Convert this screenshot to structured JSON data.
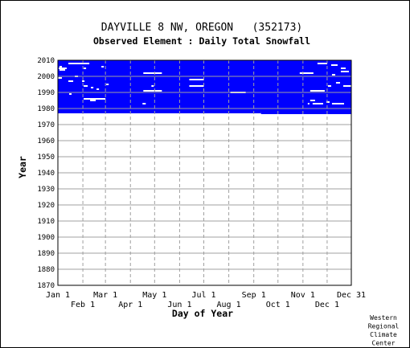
{
  "chart_data": {
    "type": "heatmap",
    "title": "DAYVILLE 8 NW, OREGON   (352173)",
    "subtitle": "Observed Element : Daily Total Snowfall",
    "xlabel": "Day of Year",
    "ylabel": "Year",
    "ylim": [
      1870,
      2010
    ],
    "xlim": [
      1,
      365
    ],
    "grid": true,
    "x_ticks_row1": [
      {
        "label": "Jan 1",
        "day": 1
      },
      {
        "label": "Mar 1",
        "day": 60
      },
      {
        "label": "May 1",
        "day": 121
      },
      {
        "label": "Jul 1",
        "day": 182
      },
      {
        "label": "Sep 1",
        "day": 244
      },
      {
        "label": "Nov 1",
        "day": 305
      },
      {
        "label": "Dec 31",
        "day": 365
      }
    ],
    "x_ticks_row2": [
      {
        "label": "Feb 1",
        "day": 32
      },
      {
        "label": "Apr 1",
        "day": 91
      },
      {
        "label": "Jun 1",
        "day": 152
      },
      {
        "label": "Aug 1",
        "day": 213
      },
      {
        "label": "Oct 1",
        "day": 274
      },
      {
        "label": "Dec 1",
        "day": 335
      }
    ],
    "y_ticks": [
      2010,
      2000,
      1990,
      1980,
      1970,
      1960,
      1950,
      1940,
      1930,
      1920,
      1910,
      1900,
      1890,
      1880,
      1870
    ],
    "data_color": "#0000ff",
    "record_start_year": 1978,
    "record_start_day": 1,
    "record_start_day_late": 253,
    "record_end_year": 2010,
    "gaps": [
      {
        "year": 2008,
        "day_start": 14,
        "day_end": 40
      },
      {
        "year": 2008,
        "day_start": 323,
        "day_end": 335
      },
      {
        "year": 2007,
        "day_start": 340,
        "day_end": 348
      },
      {
        "year": 2006,
        "day_start": 3,
        "day_end": 6
      },
      {
        "year": 2006,
        "day_start": 55,
        "day_end": 58
      },
      {
        "year": 2005,
        "day_start": 2,
        "day_end": 12
      },
      {
        "year": 2005,
        "day_start": 33,
        "day_end": 36
      },
      {
        "year": 2005,
        "day_start": 352,
        "day_end": 358
      },
      {
        "year": 2004,
        "day_start": 3,
        "day_end": 10
      },
      {
        "year": 2003,
        "day_start": 352,
        "day_end": 362
      },
      {
        "year": 2002,
        "day_start": 107,
        "day_end": 130
      },
      {
        "year": 2002,
        "day_start": 301,
        "day_end": 318
      },
      {
        "year": 2001,
        "day_start": 341,
        "day_end": 345
      },
      {
        "year": 2000,
        "day_start": 22,
        "day_end": 26
      },
      {
        "year": 1999,
        "day_start": 1,
        "day_end": 6
      },
      {
        "year": 1998,
        "day_start": 164,
        "day_end": 182
      },
      {
        "year": 1997,
        "day_start": 14,
        "day_end": 20
      },
      {
        "year": 1997,
        "day_start": 31,
        "day_end": 34
      },
      {
        "year": 1996,
        "day_start": 346,
        "day_end": 351
      },
      {
        "year": 1995,
        "day_start": 61,
        "day_end": 64
      },
      {
        "year": 1994,
        "day_start": 33,
        "day_end": 38
      },
      {
        "year": 1994,
        "day_start": 117,
        "day_end": 120
      },
      {
        "year": 1994,
        "day_start": 164,
        "day_end": 182
      },
      {
        "year": 1994,
        "day_start": 336,
        "day_end": 340
      },
      {
        "year": 1994,
        "day_start": 355,
        "day_end": 365
      },
      {
        "year": 1993,
        "day_start": 42,
        "day_end": 45
      },
      {
        "year": 1992,
        "day_start": 49,
        "day_end": 52
      },
      {
        "year": 1991,
        "day_start": 107,
        "day_end": 130
      },
      {
        "year": 1991,
        "day_start": 314,
        "day_end": 332
      },
      {
        "year": 1990,
        "day_start": 215,
        "day_end": 234
      },
      {
        "year": 1989,
        "day_start": 15,
        "day_end": 18
      },
      {
        "year": 1986,
        "day_start": 33,
        "day_end": 60
      },
      {
        "year": 1985,
        "day_start": 41,
        "day_end": 48
      },
      {
        "year": 1985,
        "day_start": 314,
        "day_end": 320
      },
      {
        "year": 1984,
        "day_start": 334,
        "day_end": 338
      },
      {
        "year": 1983,
        "day_start": 106,
        "day_end": 110
      },
      {
        "year": 1983,
        "day_start": 311,
        "day_end": 313
      },
      {
        "year": 1983,
        "day_start": 317,
        "day_end": 330
      },
      {
        "year": 1983,
        "day_start": 341,
        "day_end": 356
      }
    ]
  },
  "credit": [
    "Western",
    "Regional",
    "Climate",
    "Center"
  ]
}
